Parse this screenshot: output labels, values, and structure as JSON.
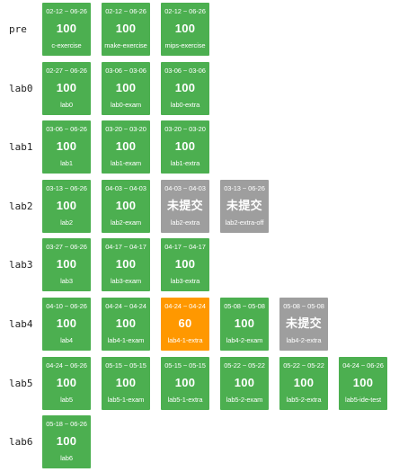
{
  "rows": [
    {
      "label": "pre",
      "cards": [
        {
          "date": "02-12 ~ 06-26",
          "score": "100",
          "name": "c-exercise",
          "status": "pass"
        },
        {
          "date": "02-12 ~ 06-26",
          "score": "100",
          "name": "make-exercise",
          "status": "pass"
        },
        {
          "date": "02-12 ~ 06-26",
          "score": "100",
          "name": "mips-exercise",
          "status": "pass"
        }
      ]
    },
    {
      "label": "lab0",
      "cards": [
        {
          "date": "02-27 ~ 06-26",
          "score": "100",
          "name": "lab0",
          "status": "pass"
        },
        {
          "date": "03-06 ~ 03-06",
          "score": "100",
          "name": "lab0-exam",
          "status": "pass"
        },
        {
          "date": "03-06 ~ 03-06",
          "score": "100",
          "name": "lab0-extra",
          "status": "pass"
        }
      ]
    },
    {
      "label": "lab1",
      "cards": [
        {
          "date": "03-06 ~ 06-26",
          "score": "100",
          "name": "lab1",
          "status": "pass"
        },
        {
          "date": "03-20 ~ 03-20",
          "score": "100",
          "name": "lab1-exam",
          "status": "pass"
        },
        {
          "date": "03-20 ~ 03-20",
          "score": "100",
          "name": "lab1-extra",
          "status": "pass"
        }
      ]
    },
    {
      "label": "lab2",
      "cards": [
        {
          "date": "03-13 ~ 06-26",
          "score": "100",
          "name": "lab2",
          "status": "pass"
        },
        {
          "date": "04-03 ~ 04-03",
          "score": "100",
          "name": "lab2-exam",
          "status": "pass"
        },
        {
          "date": "04-03 ~ 04-03",
          "score": "未提交",
          "name": "lab2-extra",
          "status": "none"
        },
        {
          "date": "03-13 ~ 06-26",
          "score": "未提交",
          "name": "lab2-extra-off",
          "status": "none"
        }
      ]
    },
    {
      "label": "lab3",
      "cards": [
        {
          "date": "03-27 ~ 06-26",
          "score": "100",
          "name": "lab3",
          "status": "pass"
        },
        {
          "date": "04-17 ~ 04-17",
          "score": "100",
          "name": "lab3-exam",
          "status": "pass"
        },
        {
          "date": "04-17 ~ 04-17",
          "score": "100",
          "name": "lab3-extra",
          "status": "pass"
        }
      ]
    },
    {
      "label": "lab4",
      "cards": [
        {
          "date": "04-10 ~ 06-26",
          "score": "100",
          "name": "lab4",
          "status": "pass"
        },
        {
          "date": "04-24 ~ 04-24",
          "score": "100",
          "name": "lab4-1-exam",
          "status": "pass"
        },
        {
          "date": "04-24 ~ 04-24",
          "score": "60",
          "name": "lab4-1-extra",
          "status": "partial"
        },
        {
          "date": "05-08 ~ 05-08",
          "score": "100",
          "name": "lab4-2-exam",
          "status": "pass"
        },
        {
          "date": "05-08 ~ 05-08",
          "score": "未提交",
          "name": "lab4-2-extra",
          "status": "none"
        }
      ]
    },
    {
      "label": "lab5",
      "cards": [
        {
          "date": "04-24 ~ 06-26",
          "score": "100",
          "name": "lab5",
          "status": "pass"
        },
        {
          "date": "05-15 ~ 05-15",
          "score": "100",
          "name": "lab5-1-exam",
          "status": "pass"
        },
        {
          "date": "05-15 ~ 05-15",
          "score": "100",
          "name": "lab5-1-extra",
          "status": "pass"
        },
        {
          "date": "05-22 ~ 05-22",
          "score": "100",
          "name": "lab5-2-exam",
          "status": "pass"
        },
        {
          "date": "05-22 ~ 05-22",
          "score": "100",
          "name": "lab5-2-extra",
          "status": "pass"
        },
        {
          "date": "04-24 ~ 06-26",
          "score": "100",
          "name": "lab5-ide-test",
          "status": "pass"
        }
      ]
    },
    {
      "label": "lab6",
      "cards": [
        {
          "date": "05-18 ~ 06-26",
          "score": "100",
          "name": "lab6",
          "status": "pass"
        }
      ]
    }
  ]
}
